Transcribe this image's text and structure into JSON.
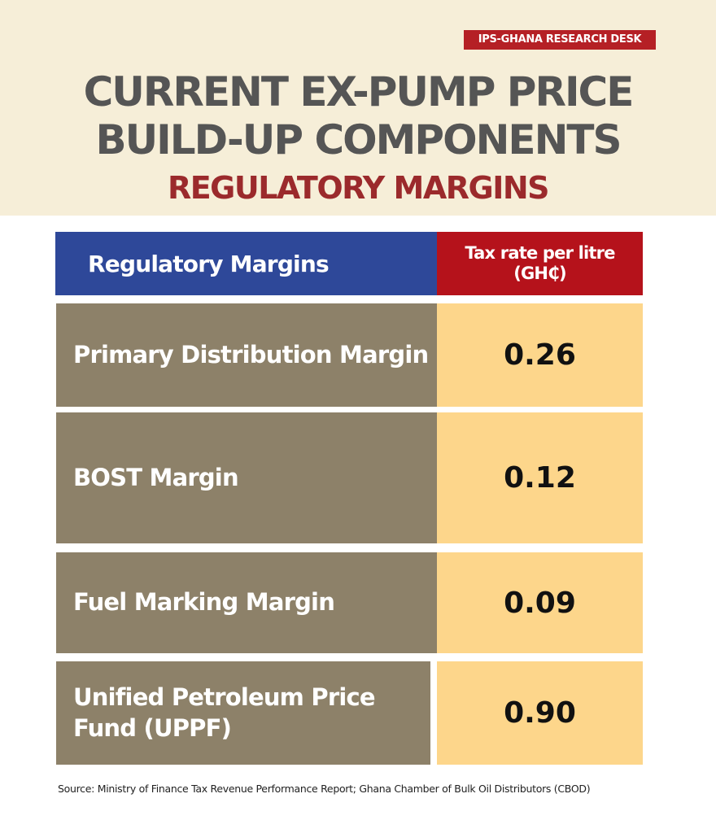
{
  "badge": "IPS-GHANA RESEARCH DESK",
  "title_line1": "CURRENT EX-PUMP PRICE",
  "title_line2": "BUILD-UP COMPONENTS",
  "subtitle": "REGULATORY MARGINS",
  "colors": {
    "header_bg": "#f6eed8",
    "blue": "#2e4899",
    "red": "#b5121b",
    "row_left": "#8d8169",
    "row_right": "#fdd68b"
  },
  "chart_data": {
    "type": "table",
    "title": "Current Ex-Pump Price Build-Up Components: Regulatory Margins",
    "columns": [
      "Regulatory Margins",
      "Tax rate per litre (GH₵)"
    ],
    "rows": [
      {
        "label": "Primary Distribution Margin",
        "value": "0.26"
      },
      {
        "label": "BOST Margin",
        "value": "0.12"
      },
      {
        "label": "Fuel Marking Margin",
        "value": "0.09"
      },
      {
        "label": "Unified Petroleum Price Fund (UPPF)",
        "value": "0.90"
      }
    ]
  },
  "source": "Source: Ministry of Finance Tax Revenue Performance Report; Ghana Chamber of Bulk Oil Distributors (CBOD)"
}
